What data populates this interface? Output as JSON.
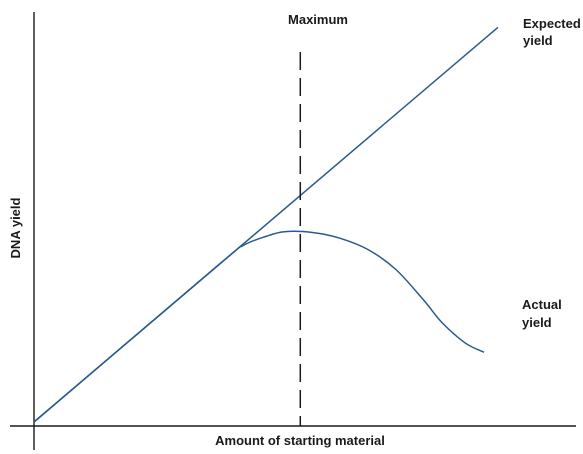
{
  "chart_data": {
    "type": "line",
    "title": "",
    "xlabel": "Amount of starting material",
    "ylabel": "DNA yield",
    "xlim": [
      0,
      100
    ],
    "ylim": [
      0,
      100
    ],
    "grid": false,
    "legend": "none",
    "series": [
      {
        "name": "Expected yield",
        "color": "#2a5a8c",
        "points": [
          [
            0,
            0
          ],
          [
            100,
            101.2
          ]
        ]
      },
      {
        "name": "Actual yield",
        "color": "#2a5a8c",
        "points": [
          [
            0,
            0
          ],
          [
            40,
            40.5
          ],
          [
            45,
            45.2
          ],
          [
            50,
            47.6
          ],
          [
            54,
            48.8
          ],
          [
            60,
            48.6
          ],
          [
            66,
            47.1
          ],
          [
            72,
            44.2
          ],
          [
            78,
            39.1
          ],
          [
            84,
            31.2
          ],
          [
            88,
            25.4
          ],
          [
            93,
            20.2
          ],
          [
            97,
            17.9
          ]
        ]
      }
    ],
    "annotations": [
      {
        "text": "Maximum",
        "x": 57.4,
        "style": "dashed-vertical-line",
        "color": "#1a1a1a"
      }
    ],
    "series_labels": [
      {
        "series": "Expected yield",
        "lines": [
          "Expected",
          "yield"
        ]
      },
      {
        "series": "Actual yield",
        "lines": [
          "Actual",
          "yield"
        ]
      }
    ]
  }
}
